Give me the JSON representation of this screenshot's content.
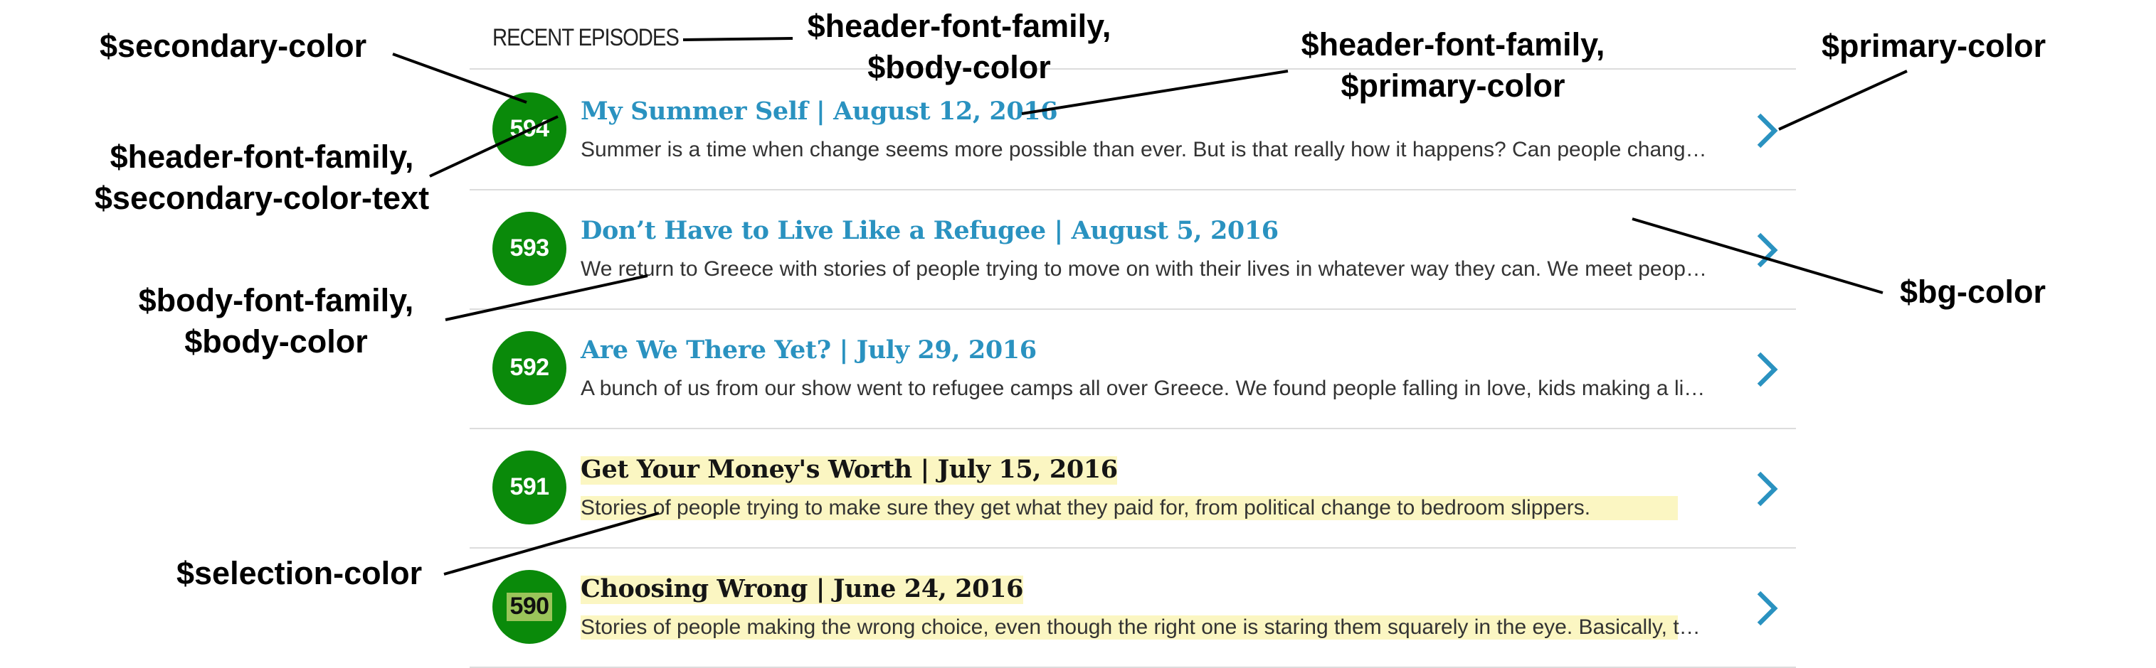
{
  "panel": {
    "header": "RECENT EPISODES"
  },
  "colors": {
    "primary": "#2a92c0",
    "secondary": "#0a8a0a",
    "selection": "#fbf6c2",
    "body": "#333333"
  },
  "episodes": [
    {
      "number": "594",
      "title": "My Summer Self | August 12, 2016",
      "description": "Summer is a time when change seems more possible than ever. But is that really how it happens? Can people change in a summer?",
      "selected": false
    },
    {
      "number": "593",
      "title": "Don’t Have to Live Like a Refugee | August 5, 2016",
      "description": "We return to Greece with stories of people trying to move on with their lives in whatever way they can. We meet people who are trying to get by.",
      "selected": false
    },
    {
      "number": "592",
      "title": "Are We There Yet? | July 29, 2016",
      "description": "A bunch of us from our show went to refugee camps all over Greece. We found people falling in love, kids making a life in camps.",
      "selected": false
    },
    {
      "number": "591",
      "title": "Get Your Money's Worth | July 15, 2016",
      "description": "Stories of people trying to make sure they get what they paid for, from political change to bedroom slippers.",
      "selected": true
    },
    {
      "number": "590",
      "title": "Choosing Wrong | June 24, 2016",
      "description": "Stories of people making the wrong choice, even though the right one is staring them squarely in the eye. Basically, this is an hour of bad choices.",
      "selected": true
    }
  ],
  "annotations": {
    "secondary_color": "$secondary-color",
    "header_body_line1": "$header-font-family,",
    "header_body_line2": "$body-color",
    "header_primary_line1": "$header-font-family,",
    "header_primary_line2": "$primary-color",
    "primary_color": "$primary-color",
    "header_secondary_text_line1": "$header-font-family,",
    "header_secondary_text_line2": "$secondary-color-text",
    "body_font_line1": "$body-font-family,",
    "body_font_line2": "$body-color",
    "bg_color": "$bg-color",
    "selection_color": "$selection-color"
  }
}
